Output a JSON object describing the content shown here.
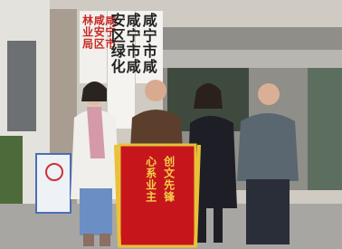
{
  "signs": [
    {
      "text": "咸宁市咸安区林业局"
    },
    {
      "text": "咸宁市咸安区绿化"
    },
    {
      "text": "咸宁市咸"
    }
  ],
  "banner": {
    "lines": [
      "创文先锋",
      "心系业主"
    ]
  }
}
